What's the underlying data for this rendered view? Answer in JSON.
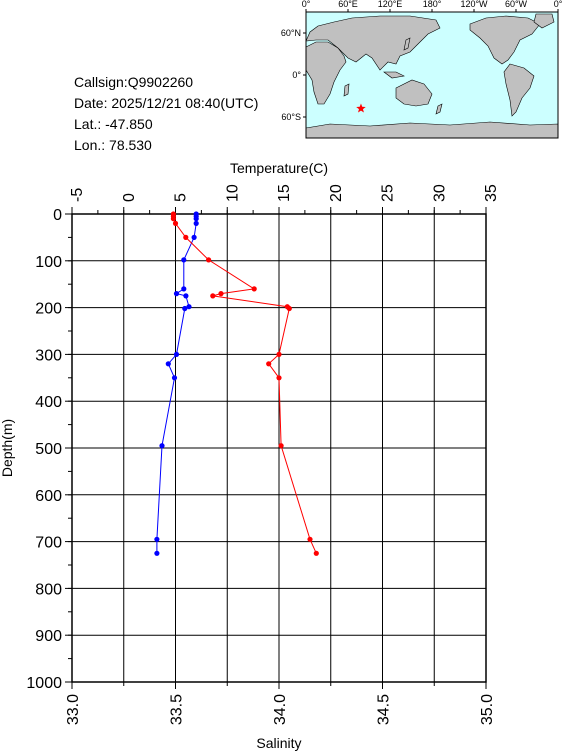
{
  "info": {
    "callsign": "Callsign:Q9902260",
    "date": "Date:  2025/12/21 08:40(UTC)",
    "lat": "Lat.:  -47.850",
    "lon": "Lon.:   78.530"
  },
  "map": {
    "lon_labels": [
      "0°",
      "60°E",
      "120°E",
      "180°",
      "120°W",
      "60°W",
      "0°"
    ],
    "lat_labels": [
      "60°N",
      "0°",
      "60°S"
    ],
    "ocean_color": "#ccffff",
    "land_color": "#c0c0c0",
    "marker": {
      "lon": 78.53,
      "lat": -47.85,
      "color": "#ff0000",
      "symbol": "star"
    }
  },
  "chart_data": {
    "type": "line",
    "title": "",
    "ylabel": "Depth(m)",
    "y_ticks": [
      0,
      100,
      200,
      300,
      400,
      500,
      600,
      700,
      800,
      900,
      1000
    ],
    "ylim": [
      1000,
      0
    ],
    "x_top": {
      "label": "Temperature(C)",
      "range": [
        -5,
        35
      ],
      "ticks": [
        -5,
        0,
        5,
        10,
        15,
        20,
        25,
        30,
        35
      ]
    },
    "x_bottom": {
      "label": "Salinity",
      "range": [
        33.0,
        35.0
      ],
      "ticks": [
        "33.0",
        "33.5",
        "34.0",
        "34.5",
        "35.0"
      ]
    },
    "grid": true,
    "series": [
      {
        "axis": "temperature",
        "color": "#0000ff",
        "points": [
          [
            7.0,
            0
          ],
          [
            7.0,
            5
          ],
          [
            7.0,
            10
          ],
          [
            7.0,
            20
          ],
          [
            6.8,
            50
          ],
          [
            5.8,
            98
          ],
          [
            5.8,
            160
          ],
          [
            5.1,
            170
          ],
          [
            6.0,
            175
          ],
          [
            6.3,
            198
          ],
          [
            5.9,
            202
          ],
          [
            5.1,
            300
          ],
          [
            4.3,
            320
          ],
          [
            4.9,
            350
          ],
          [
            3.7,
            495
          ],
          [
            3.2,
            695
          ],
          [
            3.2,
            725
          ]
        ]
      },
      {
        "axis": "salinity",
        "color": "#ff0000",
        "points": [
          [
            33.49,
            0
          ],
          [
            33.49,
            5
          ],
          [
            33.49,
            10
          ],
          [
            33.5,
            20
          ],
          [
            33.55,
            50
          ],
          [
            33.66,
            98
          ],
          [
            33.88,
            160
          ],
          [
            33.72,
            170
          ],
          [
            33.68,
            175
          ],
          [
            34.04,
            198
          ],
          [
            34.05,
            202
          ],
          [
            34.0,
            300
          ],
          [
            33.95,
            320
          ],
          [
            34.0,
            350
          ],
          [
            34.01,
            495
          ],
          [
            34.15,
            695
          ],
          [
            34.18,
            725
          ]
        ]
      }
    ]
  }
}
